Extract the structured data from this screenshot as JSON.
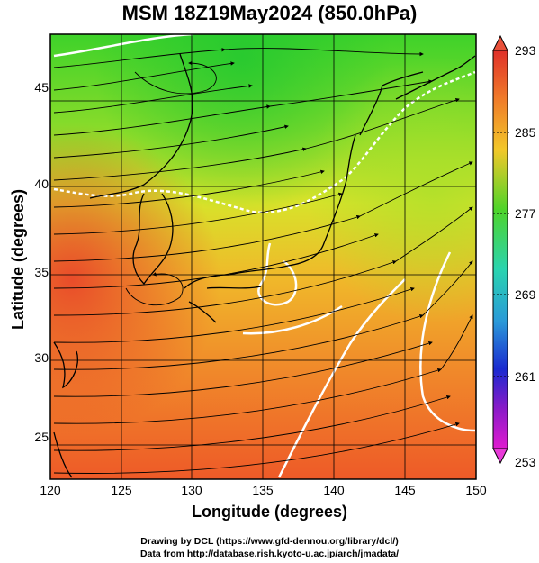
{
  "title": "MSM 18Z19May2024 (850.0hPa)",
  "map": {
    "xlabel": "Longitude (degrees)",
    "ylabel": "Latitude  (degrees)",
    "xticks": [
      "120",
      "125",
      "130",
      "135",
      "140",
      "145",
      "150"
    ],
    "yticks": [
      "25",
      "30",
      "35",
      "40",
      "45"
    ],
    "lon_range": [
      120,
      150
    ],
    "lat_range": [
      22.5,
      47.5
    ]
  },
  "colorbar": {
    "ticks": [
      "293",
      "285",
      "277",
      "269",
      "261",
      "253"
    ],
    "range": [
      253,
      293
    ]
  },
  "credits": {
    "line1": "Drawing by DCL (https://www.gfd-dennou.org/library/dcl/)",
    "line2": "Data from http://database.rish.kyoto-u.ac.jp/arch/jmadata/"
  },
  "colors": {
    "warm": "#e8402a",
    "mid": "#d8e22a",
    "cool": "#3ed22a",
    "contour": "#ffffff",
    "coast": "#000000"
  }
}
